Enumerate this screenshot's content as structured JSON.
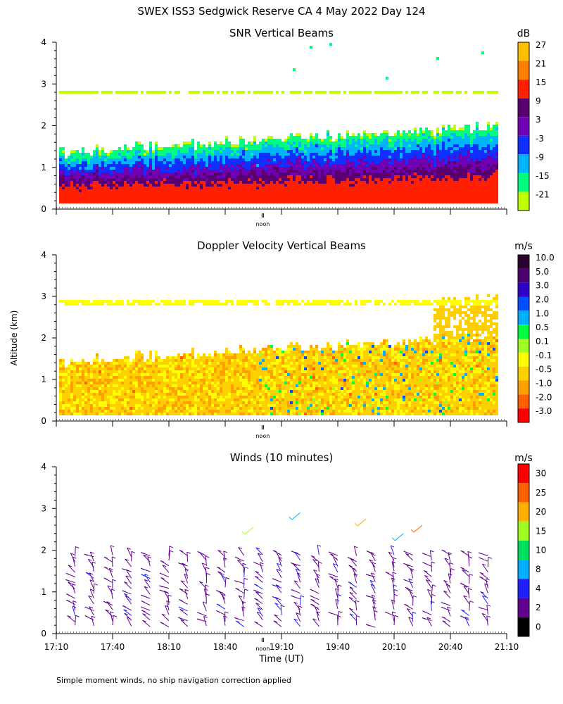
{
  "title": "SWEX ISS3 Sedgwick Reserve CA   4 May 2022 Day 124",
  "footnote": "Simple moment winds, no ship navigation correction applied",
  "shared_axes": {
    "ylabel": "Altitude (km)",
    "xlabel": "Time (UT)",
    "yticks": [
      "0",
      "1",
      "2",
      "3",
      "4"
    ],
    "xticks": [
      "17:10",
      "17:40",
      "18:10",
      "18:40",
      "19:10",
      "19:40",
      "20:10",
      "20:40",
      "21:10"
    ],
    "noon_label": "noon"
  },
  "chart_data": [
    {
      "type": "heatmap",
      "title": "SNR Vertical Beams",
      "xlabel": "Time (UT)",
      "ylabel": "Altitude (km)",
      "xlim": [
        "17:10",
        "21:10"
      ],
      "ylim": [
        0,
        4
      ],
      "colorbar": {
        "unit": "dB",
        "labels": [
          "27",
          "21",
          "15",
          "9",
          "3",
          "-3",
          "-9",
          "-15",
          "-21"
        ],
        "colors": [
          "#ffc000",
          "#ff8000",
          "#ff2000",
          "#5a006e",
          "#7000b4",
          "#1030ff",
          "#00b4ff",
          "#00ff80",
          "#c0ff00"
        ]
      }
    },
    {
      "type": "heatmap",
      "title": "Doppler Velocity Vertical Beams",
      "xlabel": "Time (UT)",
      "ylabel": "Altitude (km)",
      "xlim": [
        "17:10",
        "21:10"
      ],
      "ylim": [
        0,
        4
      ],
      "colorbar": {
        "unit": "m/s",
        "labels": [
          "10.0",
          "5.0",
          "3.0",
          "2.0",
          "1.0",
          "0.5",
          "0.1",
          "-0.1",
          "-0.5",
          "-1.0",
          "-2.0",
          "-3.0"
        ],
        "colors": [
          "#2a0030",
          "#4a006e",
          "#3000c8",
          "#0050ff",
          "#00b0ff",
          "#00ff40",
          "#a0ff20",
          "#ffff00",
          "#ffd000",
          "#ffa000",
          "#ff6000",
          "#ff0000"
        ]
      }
    },
    {
      "type": "wind-barbs",
      "title": "Winds (10 minutes)",
      "xlabel": "Time (UT)",
      "ylabel": "Altitude (km)",
      "xlim": [
        "17:10",
        "21:10"
      ],
      "ylim": [
        0,
        4
      ],
      "colorbar": {
        "unit": "m/s",
        "labels": [
          "30",
          "25",
          "20",
          "15",
          "10",
          "8",
          "4",
          "2",
          "0"
        ],
        "colors": [
          "#ff0000",
          "#ff6000",
          "#ffb000",
          "#a0ff20",
          "#00e060",
          "#00b0ff",
          "#2020ff",
          "#600090",
          "#000000"
        ]
      }
    }
  ]
}
